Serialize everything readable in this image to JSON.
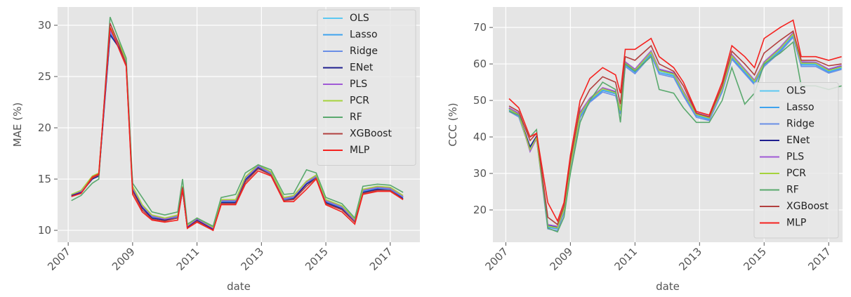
{
  "chart_data": [
    {
      "type": "line",
      "xlabel": "date",
      "ylabel": "MAE (%)",
      "legend": "upper right",
      "grid": true,
      "x": [
        2007.1,
        2007.4,
        2007.75,
        2007.95,
        2008.3,
        2008.6,
        2008.8,
        2009.0,
        2009.3,
        2009.6,
        2010.0,
        2010.4,
        2010.55,
        2010.7,
        2011.0,
        2011.5,
        2011.75,
        2012.2,
        2012.5,
        2012.9,
        2013.3,
        2013.7,
        2014.0,
        2014.4,
        2014.7,
        2015.0,
        2015.5,
        2015.9,
        2016.15,
        2016.6,
        2017.0,
        2017.4
      ],
      "xlim": [
        2006.67,
        2017.92
      ],
      "xticks": [
        2007,
        2009,
        2011,
        2013,
        2015,
        2017
      ],
      "ylim": [
        8.84,
        31.78
      ],
      "yticks": [
        10,
        15,
        20,
        25,
        30
      ],
      "series": [
        {
          "name": "OLS",
          "color": "#5cc8f2",
          "values": [
            13.4,
            13.7,
            15.0,
            15.3,
            29.2,
            27.8,
            26.3,
            14.0,
            12.3,
            11.3,
            11.0,
            11.3,
            14.0,
            10.3,
            11.0,
            10.1,
            12.8,
            12.8,
            15.0,
            16.2,
            15.5,
            13.0,
            13.2,
            14.6,
            15.2,
            12.8,
            12.2,
            10.9,
            13.8,
            14.1,
            14.0,
            13.2
          ]
        },
        {
          "name": "Lasso",
          "color": "#3fa3ee",
          "values": [
            13.4,
            13.7,
            15.0,
            15.3,
            29.0,
            27.8,
            26.3,
            14.0,
            12.2,
            11.3,
            11.0,
            11.3,
            14.0,
            10.3,
            11.0,
            10.1,
            12.8,
            12.8,
            15.0,
            16.1,
            15.5,
            13.0,
            13.2,
            14.6,
            15.2,
            12.8,
            12.2,
            10.9,
            13.8,
            14.1,
            14.0,
            13.2
          ]
        },
        {
          "name": "Ridge",
          "color": "#6a8fe6",
          "values": [
            13.4,
            13.8,
            15.1,
            15.4,
            29.3,
            27.9,
            26.4,
            14.1,
            12.4,
            11.4,
            11.1,
            11.4,
            14.1,
            10.4,
            11.1,
            10.2,
            12.9,
            12.9,
            15.1,
            16.2,
            15.6,
            13.1,
            13.3,
            14.7,
            15.3,
            12.9,
            12.3,
            11.0,
            13.9,
            14.2,
            14.1,
            13.3
          ]
        },
        {
          "name": "ENet",
          "color": "#1f1f8f",
          "values": [
            13.4,
            13.7,
            15.0,
            15.3,
            29.1,
            27.7,
            26.2,
            13.9,
            12.2,
            11.2,
            11.0,
            11.2,
            13.9,
            10.3,
            11.0,
            10.1,
            12.7,
            12.7,
            14.9,
            16.1,
            15.4,
            12.9,
            13.1,
            14.5,
            15.1,
            12.7,
            12.1,
            10.8,
            13.7,
            14.0,
            13.9,
            13.1
          ]
        },
        {
          "name": "PLS",
          "color": "#a05ad6",
          "values": [
            13.5,
            13.8,
            15.2,
            15.5,
            29.5,
            28.0,
            26.5,
            14.2,
            12.4,
            11.4,
            11.1,
            11.4,
            14.2,
            10.4,
            11.1,
            10.2,
            12.9,
            12.9,
            15.1,
            16.3,
            15.6,
            13.1,
            13.3,
            14.7,
            15.3,
            12.9,
            12.3,
            11.0,
            13.9,
            14.2,
            14.1,
            13.3
          ]
        },
        {
          "name": "PCR",
          "color": "#a6d33c",
          "values": [
            13.5,
            13.9,
            15.3,
            15.6,
            29.8,
            28.1,
            26.6,
            14.3,
            12.5,
            11.5,
            11.2,
            11.5,
            14.3,
            10.5,
            11.2,
            10.3,
            13.0,
            13.0,
            15.2,
            16.4,
            15.7,
            13.2,
            13.4,
            14.8,
            15.4,
            13.0,
            12.4,
            11.1,
            14.0,
            14.3,
            14.2,
            13.4
          ]
        },
        {
          "name": "RF",
          "color": "#5aa96e",
          "values": [
            12.9,
            13.4,
            14.6,
            15.0,
            30.8,
            28.4,
            26.8,
            14.6,
            13.2,
            11.8,
            11.5,
            11.8,
            15.0,
            10.6,
            11.2,
            10.4,
            13.2,
            13.5,
            15.6,
            16.4,
            15.9,
            13.5,
            13.6,
            15.9,
            15.6,
            13.2,
            12.6,
            11.2,
            14.3,
            14.5,
            14.4,
            13.7
          ]
        },
        {
          "name": "XGBoost",
          "color": "#b2403f",
          "values": [
            13.3,
            13.6,
            15.1,
            15.4,
            30.2,
            27.9,
            26.2,
            13.8,
            12.0,
            11.1,
            10.9,
            11.2,
            14.2,
            10.2,
            10.9,
            10.0,
            12.6,
            12.6,
            14.7,
            16.0,
            15.4,
            12.9,
            13.0,
            14.3,
            15.1,
            12.6,
            12.0,
            10.8,
            13.6,
            13.9,
            13.9,
            13.0
          ]
        },
        {
          "name": "MLP",
          "color": "#f5221f",
          "values": [
            13.3,
            13.6,
            15.2,
            15.5,
            29.8,
            27.5,
            26.0,
            13.5,
            11.8,
            11.0,
            10.8,
            11.0,
            14.0,
            10.2,
            10.8,
            10.0,
            12.5,
            12.5,
            14.5,
            15.8,
            15.3,
            12.8,
            12.8,
            14.0,
            15.0,
            12.5,
            11.8,
            10.6,
            13.5,
            13.8,
            13.8,
            13.0
          ]
        }
      ]
    },
    {
      "type": "line",
      "xlabel": "date",
      "ylabel": "CCC (%)",
      "legend": "lower right",
      "grid": true,
      "x": [
        2007.1,
        2007.4,
        2007.75,
        2007.95,
        2008.3,
        2008.6,
        2008.8,
        2009.0,
        2009.3,
        2009.6,
        2010.0,
        2010.4,
        2010.55,
        2010.7,
        2011.0,
        2011.5,
        2011.75,
        2012.2,
        2012.5,
        2012.9,
        2013.3,
        2013.7,
        2014.0,
        2014.4,
        2014.7,
        2015.0,
        2015.5,
        2015.9,
        2016.15,
        2016.6,
        2017.0,
        2017.4
      ],
      "xlim": [
        2006.6,
        2017.43
      ],
      "xticks": [
        2007,
        2009,
        2011,
        2013,
        2015,
        2017
      ],
      "ylim": [
        11.15,
        75.6
      ],
      "yticks": [
        20,
        30,
        40,
        50,
        60,
        70
      ],
      "series": [
        {
          "name": "OLS",
          "color": "#5cc8f2",
          "values": [
            47.5,
            46,
            37,
            40,
            15.5,
            15,
            20,
            32,
            46,
            50,
            53,
            52,
            47,
            60,
            58,
            63,
            58,
            57,
            52,
            46,
            45,
            53,
            62,
            58,
            55,
            60,
            64,
            68,
            60,
            60,
            58,
            59
          ]
        },
        {
          "name": "Lasso",
          "color": "#3fa3ee",
          "values": [
            47.3,
            45.8,
            36.8,
            39.8,
            15.2,
            14.8,
            19.7,
            31.6,
            45.7,
            49.8,
            52.7,
            51.8,
            46.8,
            59.7,
            57.7,
            62.7,
            57.6,
            56.7,
            51.7,
            45.8,
            44.8,
            52.7,
            61.7,
            57.7,
            54.7,
            59.7,
            63.7,
            67.7,
            59.7,
            59.7,
            57.8,
            58.8
          ]
        },
        {
          "name": "Ridge",
          "color": "#6a8fe6",
          "values": [
            47,
            45.5,
            36.5,
            39.5,
            14.8,
            14.3,
            19.2,
            31,
            45.2,
            49.5,
            52.3,
            51.3,
            46.3,
            59.3,
            57.3,
            62.3,
            57.2,
            56.3,
            51.3,
            45.4,
            44.5,
            52.3,
            61.3,
            57.3,
            54.3,
            59.3,
            63.3,
            67.3,
            59.3,
            59.3,
            57.5,
            58.5
          ]
        },
        {
          "name": "ENet",
          "color": "#1f1f8f",
          "values": [
            47.8,
            46.2,
            37.3,
            40.2,
            15.8,
            15.3,
            20.4,
            32.5,
            46.4,
            50.3,
            53.3,
            52.2,
            47.3,
            60.3,
            58.3,
            63.3,
            58.3,
            57.3,
            52.3,
            46.3,
            45.3,
            53.3,
            62.3,
            58.3,
            55.3,
            60.3,
            64.3,
            68.3,
            60.3,
            60.3,
            58.3,
            59.3
          ]
        },
        {
          "name": "PLS",
          "color": "#a05ad6",
          "values": [
            48,
            46.5,
            36,
            39.5,
            16,
            15.5,
            20.8,
            33,
            46.8,
            50.6,
            53.5,
            52.5,
            47.6,
            60.6,
            58.6,
            63.6,
            58.6,
            57.6,
            52.6,
            46.6,
            45.6,
            53.6,
            62.6,
            58.6,
            55.6,
            60.6,
            64.6,
            68.6,
            60.6,
            60.5,
            58.6,
            59.6
          ]
        },
        {
          "name": "PCR",
          "color": "#a6d33c",
          "values": [
            47.6,
            46.1,
            36.5,
            39.8,
            15.6,
            15.1,
            20.2,
            32.2,
            46.2,
            50.2,
            53.2,
            52.1,
            47.2,
            60.2,
            58.2,
            63.2,
            58.2,
            57.2,
            52.2,
            46.2,
            45.2,
            53.2,
            62.2,
            58.2,
            55.2,
            60.2,
            64.2,
            68.2,
            60.2,
            60.2,
            58.2,
            59.2
          ]
        },
        {
          "name": "RF",
          "color": "#5aa96e",
          "values": [
            47,
            46,
            40,
            42,
            15,
            14,
            18,
            30,
            44,
            50,
            55,
            53,
            44,
            60,
            58,
            62,
            53,
            52,
            48,
            44,
            44,
            50,
            59,
            49,
            52,
            60,
            63,
            66,
            54,
            54,
            53,
            54
          ]
        },
        {
          "name": "XGBoost",
          "color": "#b2403f",
          "values": [
            48.5,
            47,
            39,
            41,
            18,
            16,
            21,
            33.5,
            48,
            53,
            56.5,
            55,
            49,
            62,
            61,
            65,
            60,
            58,
            54,
            46.5,
            45.5,
            54,
            63.5,
            60,
            57,
            63,
            66.5,
            69,
            61,
            61,
            59.5,
            60
          ]
        },
        {
          "name": "MLP",
          "color": "#f5221f",
          "values": [
            50.5,
            48,
            40,
            41,
            22,
            17,
            22,
            35,
            50,
            56,
            59,
            57,
            52,
            64,
            64,
            67,
            62,
            59,
            55,
            47,
            46,
            55,
            65,
            62,
            59,
            67,
            70,
            72,
            62,
            62,
            61,
            62
          ]
        }
      ]
    }
  ]
}
